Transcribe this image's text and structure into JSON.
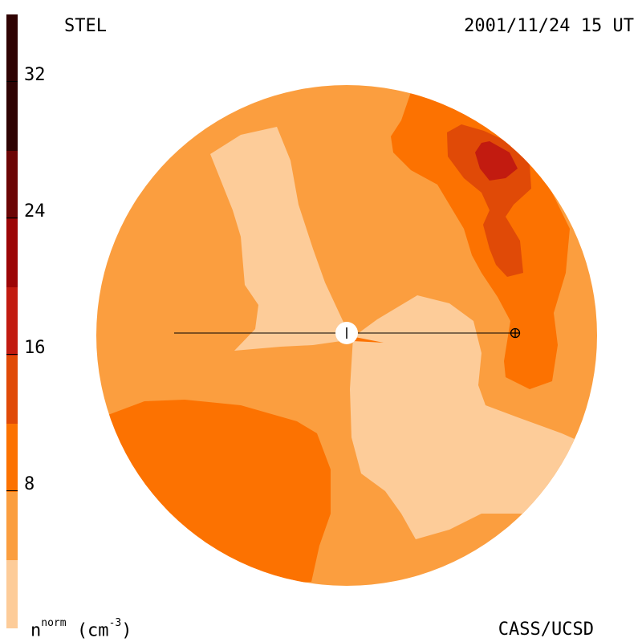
{
  "header": {
    "instrument": "STEL",
    "datetime": "2001/11/24 15 UT"
  },
  "footer": {
    "unit_base": "n",
    "unit_sup": "norm",
    "unit_paren": "(cm",
    "unit_exp": "-3",
    "unit_close": ")",
    "credit": "CASS/UCSD"
  },
  "colorbar": {
    "ticks": [
      "32",
      "24",
      "16",
      "8"
    ],
    "levels": [
      {
        "min": 0,
        "max": 4,
        "color": "#fdcc99"
      },
      {
        "min": 4,
        "max": 8,
        "color": "#fb9e3f"
      },
      {
        "min": 8,
        "max": 12,
        "color": "#fc7201"
      },
      {
        "min": 12,
        "max": 16,
        "color": "#e04a07"
      },
      {
        "min": 16,
        "max": 20,
        "color": "#c21b10"
      },
      {
        "min": 20,
        "max": 24,
        "color": "#9c0506"
      },
      {
        "min": 24,
        "max": 28,
        "color": "#6c0505"
      },
      {
        "min": 28,
        "max": 36,
        "color": "#2f0303"
      }
    ]
  },
  "colors": {
    "level1": "#fdcc99",
    "level2": "#fb9e3f",
    "level3": "#fc7201",
    "level4": "#e04a07",
    "level5": "#c21b10",
    "sun": "#ffffff",
    "line": "#000000"
  }
}
